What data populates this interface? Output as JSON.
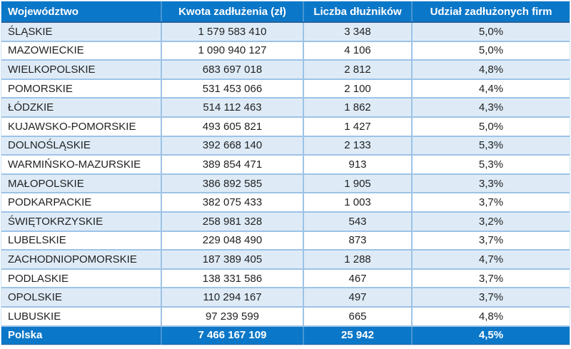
{
  "chart_data": {
    "type": "table",
    "title": "",
    "columns": [
      "Województwo",
      "Kwota zadłużenia (zł)",
      "Liczba dłużników",
      "Udział zadłużonych firm"
    ],
    "rows": [
      [
        "ŚLĄSKIE",
        "1 579 583 410",
        "3 348",
        "5,0%"
      ],
      [
        "MAZOWIECKIE",
        "1 090 940 127",
        "4 106",
        "5,0%"
      ],
      [
        "WIELKOPOLSKIE",
        "683 697 018",
        "2 812",
        "4,8%"
      ],
      [
        "POMORSKIE",
        "531 453 066",
        "2 100",
        "4,4%"
      ],
      [
        "ŁÓDZKIE",
        "514 112 463",
        "1 862",
        "4,3%"
      ],
      [
        "KUJAWSKO-POMORSKIE",
        "493 605 821",
        "1 427",
        "5,0%"
      ],
      [
        "DOLNOŚLĄSKIE",
        "392 668 140",
        "2 133",
        "5,3%"
      ],
      [
        "WARMIŃSKO-MAZURSKIE",
        "389 854 471",
        "913",
        "5,3%"
      ],
      [
        "MAŁOPOLSKIE",
        "386 892 585",
        "1 905",
        "3,3%"
      ],
      [
        "PODKARPACKIE",
        "382 075 433",
        "1 003",
        "3,7%"
      ],
      [
        "ŚWIĘTOKRZYSKIE",
        "258 981 328",
        "543",
        "3,2%"
      ],
      [
        "LUBELSKIE",
        "229 048 490",
        "873",
        "3,7%"
      ],
      [
        "ZACHODNIOPOMORSKIE",
        "187 389 405",
        "1 288",
        "4,7%"
      ],
      [
        "PODLASKIE",
        "138 331 586",
        "467",
        "3,7%"
      ],
      [
        "OPOLSKIE",
        "110 294 167",
        "497",
        "3,7%"
      ],
      [
        "LUBUSKIE",
        "97 239 599",
        "665",
        "4,8%"
      ]
    ],
    "footer": [
      "Polska",
      "7 466 167 109",
      "25 942",
      "4,5%"
    ]
  },
  "colors": {
    "header_bg": "#0b77c8",
    "header_text": "#ffffff",
    "row_alt_bg": "#deebf7",
    "row_bg": "#ffffff",
    "grid_line": "#9dc3e6",
    "header_divider": "#4795d2",
    "header_bottom_border": "#27639e",
    "body_text": "#222222"
  }
}
